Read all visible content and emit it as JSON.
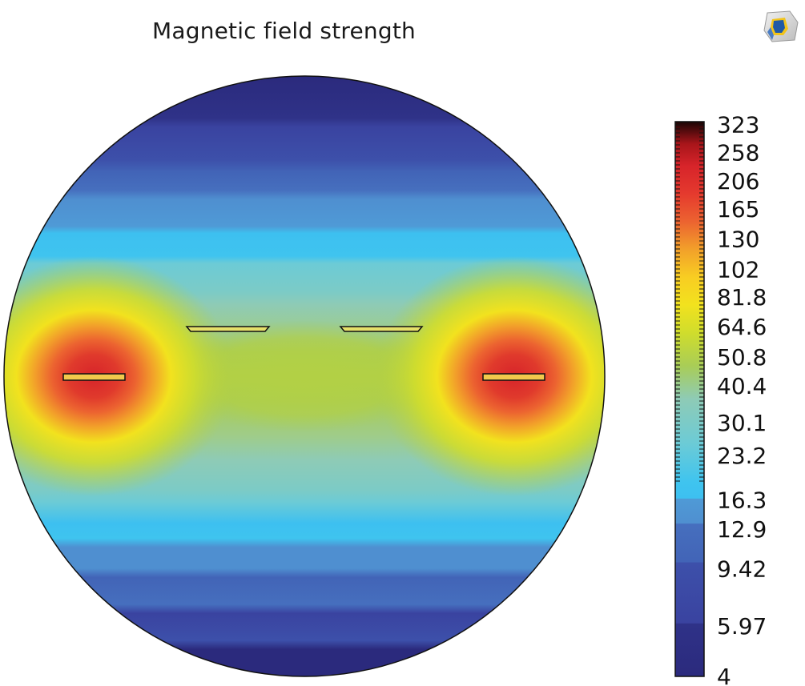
{
  "chart_data": {
    "type": "heatmap",
    "title": "Magnetic field strength",
    "xlabel": "",
    "ylabel": "",
    "colorbar": {
      "tick_labels": [
        "323",
        "258",
        "206",
        "165",
        "130",
        "102",
        "81.8",
        "64.6",
        "50.8",
        "40.4",
        "30.1",
        "23.2",
        "16.3",
        "12.9",
        "9.42",
        "5.97",
        "4"
      ],
      "ticks": [
        323,
        258,
        206,
        165,
        130,
        102,
        81.8,
        64.6,
        50.8,
        40.4,
        30.1,
        23.2,
        16.3,
        12.9,
        9.42,
        5.97,
        4
      ],
      "min": 4,
      "max": 330,
      "scale": "logarithmic",
      "stops": [
        {
          "value": 4,
          "color": "#2b2a7d"
        },
        {
          "value": 5.97,
          "color": "#3a43a0"
        },
        {
          "value": 9.42,
          "color": "#4264b7"
        },
        {
          "value": 12.9,
          "color": "#4f8fd0"
        },
        {
          "value": 16.3,
          "color": "#3dc0f0"
        },
        {
          "value": 23.2,
          "color": "#6ccbd6"
        },
        {
          "value": 30.1,
          "color": "#8ecbb6"
        },
        {
          "value": 40.4,
          "color": "#a9cd56"
        },
        {
          "value": 50.8,
          "color": "#d0dd2c"
        },
        {
          "value": 64.6,
          "color": "#f2e21e"
        },
        {
          "value": 81.8,
          "color": "#f8cd22"
        },
        {
          "value": 102,
          "color": "#f2a02a"
        },
        {
          "value": 130,
          "color": "#ec6330"
        },
        {
          "value": 165,
          "color": "#e53a2e"
        },
        {
          "value": 206,
          "color": "#d7242a"
        },
        {
          "value": 258,
          "color": "#a8151a"
        },
        {
          "value": 323,
          "color": "#1a0404"
        }
      ]
    },
    "field_regions": [
      {
        "region": "top and bottom edges",
        "value": 4
      },
      {
        "region": "horizontal center band",
        "value": 45
      },
      {
        "region": "left and right lobes",
        "value": 60
      },
      {
        "region": "outer conductors",
        "value": 323
      },
      {
        "region": "inner conductors",
        "value": 45
      }
    ]
  },
  "logo": {
    "name": "comsol-logo"
  }
}
